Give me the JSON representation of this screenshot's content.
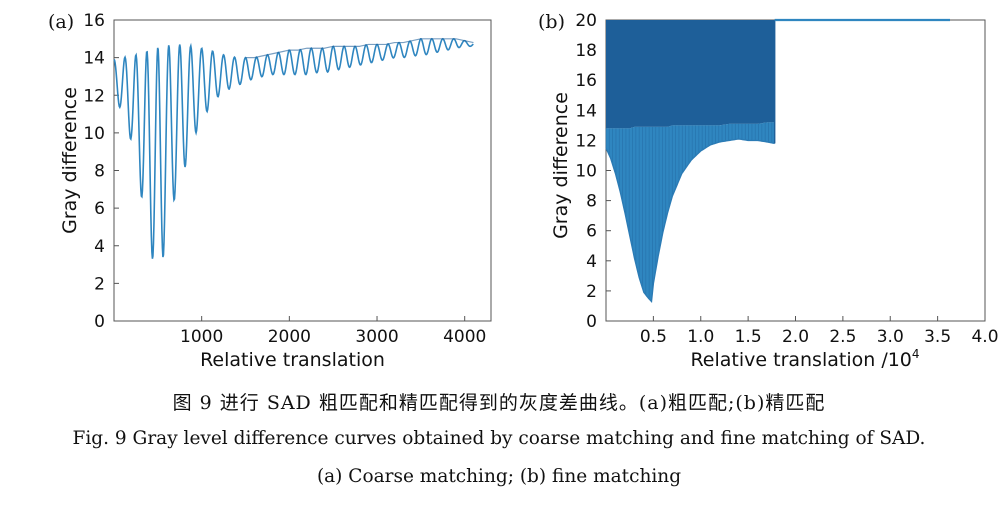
{
  "figure": {
    "caption_cn": "图 9  进行 SAD 粗匹配和精匹配得到的灰度差曲线。(a)粗匹配;(b)精匹配",
    "caption_en": "Fig. 9  Gray level difference curves obtained by coarse matching and fine matching of SAD.",
    "caption_en_sub": "(a) Coarse matching; (b) fine matching"
  },
  "chart_data": [
    {
      "panel": "(a)",
      "type": "line",
      "xlabel": "Relative translation",
      "ylabel": "Gray difference",
      "xlim": [
        0,
        4300
      ],
      "ylim": [
        0,
        16
      ],
      "xticks": [
        1000,
        2000,
        3000,
        4000
      ],
      "yticks": [
        0,
        2,
        4,
        6,
        8,
        10,
        12,
        14,
        16
      ],
      "grid": false,
      "line_color": "#2f86c0",
      "series": [
        {
          "x": [
            0,
            100,
            200,
            300,
            350,
            400,
            450,
            500,
            560,
            600,
            700,
            800,
            900,
            1000,
            1100,
            1200,
            1300,
            1400,
            1500,
            1600,
            1700,
            1800,
            1900,
            2000,
            2100,
            2200,
            2300,
            2400,
            2500,
            2600,
            2700,
            2800,
            2900,
            3000,
            3100,
            3200,
            3300,
            3400,
            3500,
            3600,
            3700,
            3800,
            3900,
            4000,
            4100
          ],
          "upper": [
            13.9,
            14.0,
            14.1,
            14.2,
            14.3,
            14.4,
            14.5,
            14.55,
            14.6,
            14.65,
            14.7,
            14.7,
            14.6,
            14.5,
            14.4,
            14.2,
            14.1,
            14.0,
            14.0,
            14.0,
            14.1,
            14.2,
            14.3,
            14.4,
            14.4,
            14.5,
            14.5,
            14.5,
            14.6,
            14.6,
            14.6,
            14.6,
            14.7,
            14.7,
            14.7,
            14.8,
            14.8,
            14.9,
            15.0,
            15.0,
            15.0,
            15.0,
            15.0,
            14.9,
            14.8
          ],
          "lower": [
            12.0,
            11.0,
            9.5,
            7.0,
            5.5,
            4.3,
            3.0,
            1.9,
            3.3,
            5.2,
            6.6,
            8.0,
            9.6,
            10.7,
            11.4,
            12.0,
            12.3,
            12.5,
            12.7,
            12.9,
            13.0,
            13.1,
            13.1,
            13.1,
            13.1,
            13.1,
            13.2,
            13.2,
            13.3,
            13.4,
            13.5,
            13.6,
            13.7,
            13.8,
            13.9,
            14.0,
            14.0,
            14.1,
            14.1,
            14.2,
            14.3,
            14.4,
            14.5,
            14.6,
            14.6
          ]
        }
      ]
    },
    {
      "panel": "(b)",
      "type": "line",
      "xlabel": "Relative translation /10",
      "xlabel_exp": "4",
      "ylabel": "Gray difference",
      "xlim": [
        0,
        4.0
      ],
      "ylim": [
        0,
        20
      ],
      "xticks": [
        0.5,
        1.0,
        1.5,
        2.0,
        2.5,
        3.0,
        3.5,
        4.0
      ],
      "yticks": [
        0,
        2,
        4,
        6,
        8,
        10,
        12,
        14,
        16,
        18,
        20
      ],
      "grid": false,
      "line_color": "#2f86c0",
      "dense_color": "#1e5f99",
      "series": [
        {
          "x": [
            0.0,
            0.05,
            0.1,
            0.15,
            0.2,
            0.25,
            0.3,
            0.35,
            0.4,
            0.45,
            0.48,
            0.5,
            0.55,
            0.6,
            0.65,
            0.7,
            0.8,
            0.9,
            1.0,
            1.1,
            1.2,
            1.3,
            1.4,
            1.5,
            1.6,
            1.7,
            1.78
          ],
          "upper": [
            20,
            20,
            20,
            20,
            20,
            20,
            20,
            20,
            20,
            20,
            20,
            20,
            20,
            20,
            20,
            20,
            20,
            20,
            20,
            20,
            20,
            20,
            20,
            20,
            20,
            20,
            20
          ],
          "mid": [
            12.8,
            12.8,
            12.8,
            12.8,
            12.8,
            12.8,
            12.9,
            12.9,
            12.9,
            12.9,
            12.9,
            12.9,
            12.9,
            12.9,
            12.9,
            13.0,
            13.0,
            13.0,
            13.0,
            13.0,
            13.0,
            13.1,
            13.1,
            13.1,
            13.1,
            13.2,
            13.2
          ],
          "lower": [
            11.5,
            10.8,
            9.8,
            8.6,
            7.2,
            5.7,
            4.2,
            2.9,
            1.9,
            1.5,
            1.3,
            2.5,
            4.3,
            5.9,
            7.2,
            8.3,
            9.8,
            10.7,
            11.3,
            11.7,
            11.9,
            12.0,
            12.1,
            12.0,
            12.0,
            11.9,
            11.8
          ]
        },
        {
          "x": [
            1.78,
            4.0
          ],
          "values": [
            20,
            20
          ]
        }
      ]
    }
  ]
}
